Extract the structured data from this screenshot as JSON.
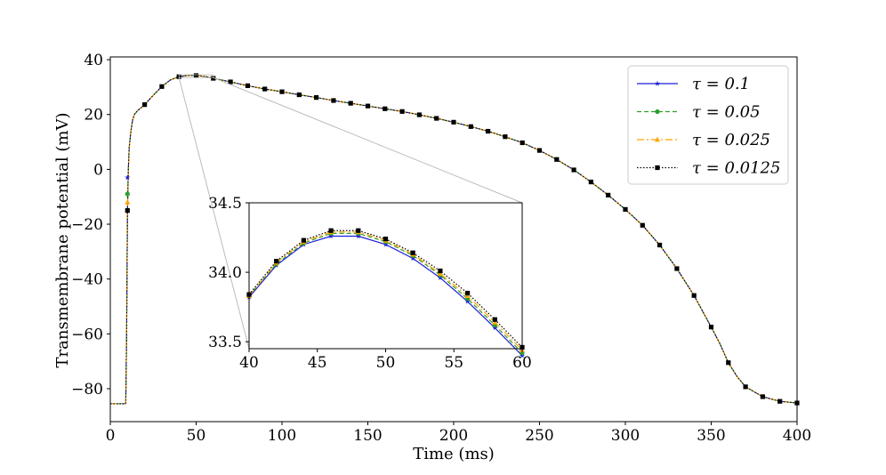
{
  "chart_data": {
    "type": "line",
    "xlabel": "Time (ms)",
    "ylabel": "Transmembrane potential (mV)",
    "xlim": [
      0,
      400
    ],
    "ylim": [
      -92,
      41
    ],
    "xticks": [
      0,
      50,
      100,
      150,
      200,
      250,
      300,
      350,
      400
    ],
    "yticks": [
      -80,
      -60,
      -40,
      -20,
      0,
      20,
      40
    ],
    "xtick_labels": [
      "0",
      "50",
      "100",
      "150",
      "200",
      "250",
      "300",
      "350",
      "400"
    ],
    "ytick_labels": [
      "−80",
      "−60",
      "−40",
      "−20",
      "0",
      "20",
      "40"
    ],
    "grid": false,
    "legend_position": "top-right",
    "series": [
      {
        "name": "τ = 0.1",
        "color": "#1f1fd6",
        "dash": "solid",
        "marker": "star"
      },
      {
        "name": "τ = 0.05",
        "color": "#2ca02c",
        "dash": "dashed",
        "marker": "circle"
      },
      {
        "name": "τ = 0.025",
        "color": "#ffa500",
        "dash": "dashdot",
        "marker": "triangle"
      },
      {
        "name": "τ = 0.0125",
        "color": "#000000",
        "dash": "dotted",
        "marker": "square"
      }
    ],
    "main_curve": {
      "x": [
        0,
        9,
        9.5,
        10,
        10.5,
        11,
        12,
        13,
        14,
        16,
        18,
        20,
        25,
        30,
        35,
        40,
        45,
        48,
        50,
        55,
        60,
        70,
        80,
        90,
        100,
        110,
        120,
        130,
        140,
        150,
        160,
        170,
        180,
        190,
        200,
        210,
        220,
        230,
        240,
        250,
        260,
        270,
        280,
        290,
        300,
        310,
        320,
        330,
        340,
        350,
        355,
        360,
        365,
        370,
        380,
        390,
        400
      ],
      "y": [
        -85.5,
        -85.5,
        -60,
        -15,
        0,
        8,
        14,
        18,
        20,
        21.5,
        22.5,
        23.6,
        27,
        30.2,
        32.6,
        33.8,
        34.2,
        34.3,
        34.2,
        33.9,
        33.2,
        31.9,
        30.5,
        29.3,
        28.3,
        27.2,
        26.2,
        25.1,
        24.1,
        23.1,
        22.1,
        21.1,
        19.9,
        18.6,
        17.2,
        15.6,
        13.9,
        11.9,
        9.7,
        6.9,
        3.6,
        -0.2,
        -4.6,
        -9.4,
        -14.6,
        -20.4,
        -27.6,
        -36.2,
        -46,
        -57.5,
        -63.5,
        -70.5,
        -75.5,
        -79.3,
        -82.9,
        -84.6,
        -85.2
      ]
    },
    "upstroke_markers": [
      {
        "series": 0,
        "x": 10,
        "y": -3
      },
      {
        "series": 1,
        "x": 10,
        "y": -9
      },
      {
        "series": 2,
        "x": 10,
        "y": -12
      },
      {
        "series": 3,
        "x": 10,
        "y": -15
      }
    ],
    "inset": {
      "xlim": [
        40,
        60
      ],
      "ylim": [
        33.45,
        34.5
      ],
      "xticks": [
        40,
        45,
        50,
        55,
        60
      ],
      "yticks": [
        33.5,
        34.0,
        34.5
      ],
      "xtick_labels": [
        "40",
        "45",
        "50",
        "55",
        "60"
      ],
      "ytick_labels": [
        "33.5",
        "34.0",
        "34.5"
      ],
      "x": [
        40,
        42,
        44,
        46,
        48,
        50,
        52,
        54,
        56,
        58,
        60
      ],
      "series_y": [
        [
          33.82,
          34.05,
          34.2,
          34.26,
          34.26,
          34.2,
          34.1,
          33.96,
          33.79,
          33.6,
          33.4
        ],
        [
          33.83,
          34.06,
          34.21,
          34.28,
          34.28,
          34.22,
          34.12,
          33.98,
          33.81,
          33.62,
          33.42
        ],
        [
          33.83,
          34.07,
          34.22,
          34.29,
          34.29,
          34.23,
          34.13,
          33.99,
          33.83,
          33.64,
          33.44
        ],
        [
          33.84,
          34.08,
          34.23,
          34.3,
          34.3,
          34.24,
          34.14,
          34.01,
          33.85,
          33.66,
          33.46
        ]
      ]
    }
  }
}
